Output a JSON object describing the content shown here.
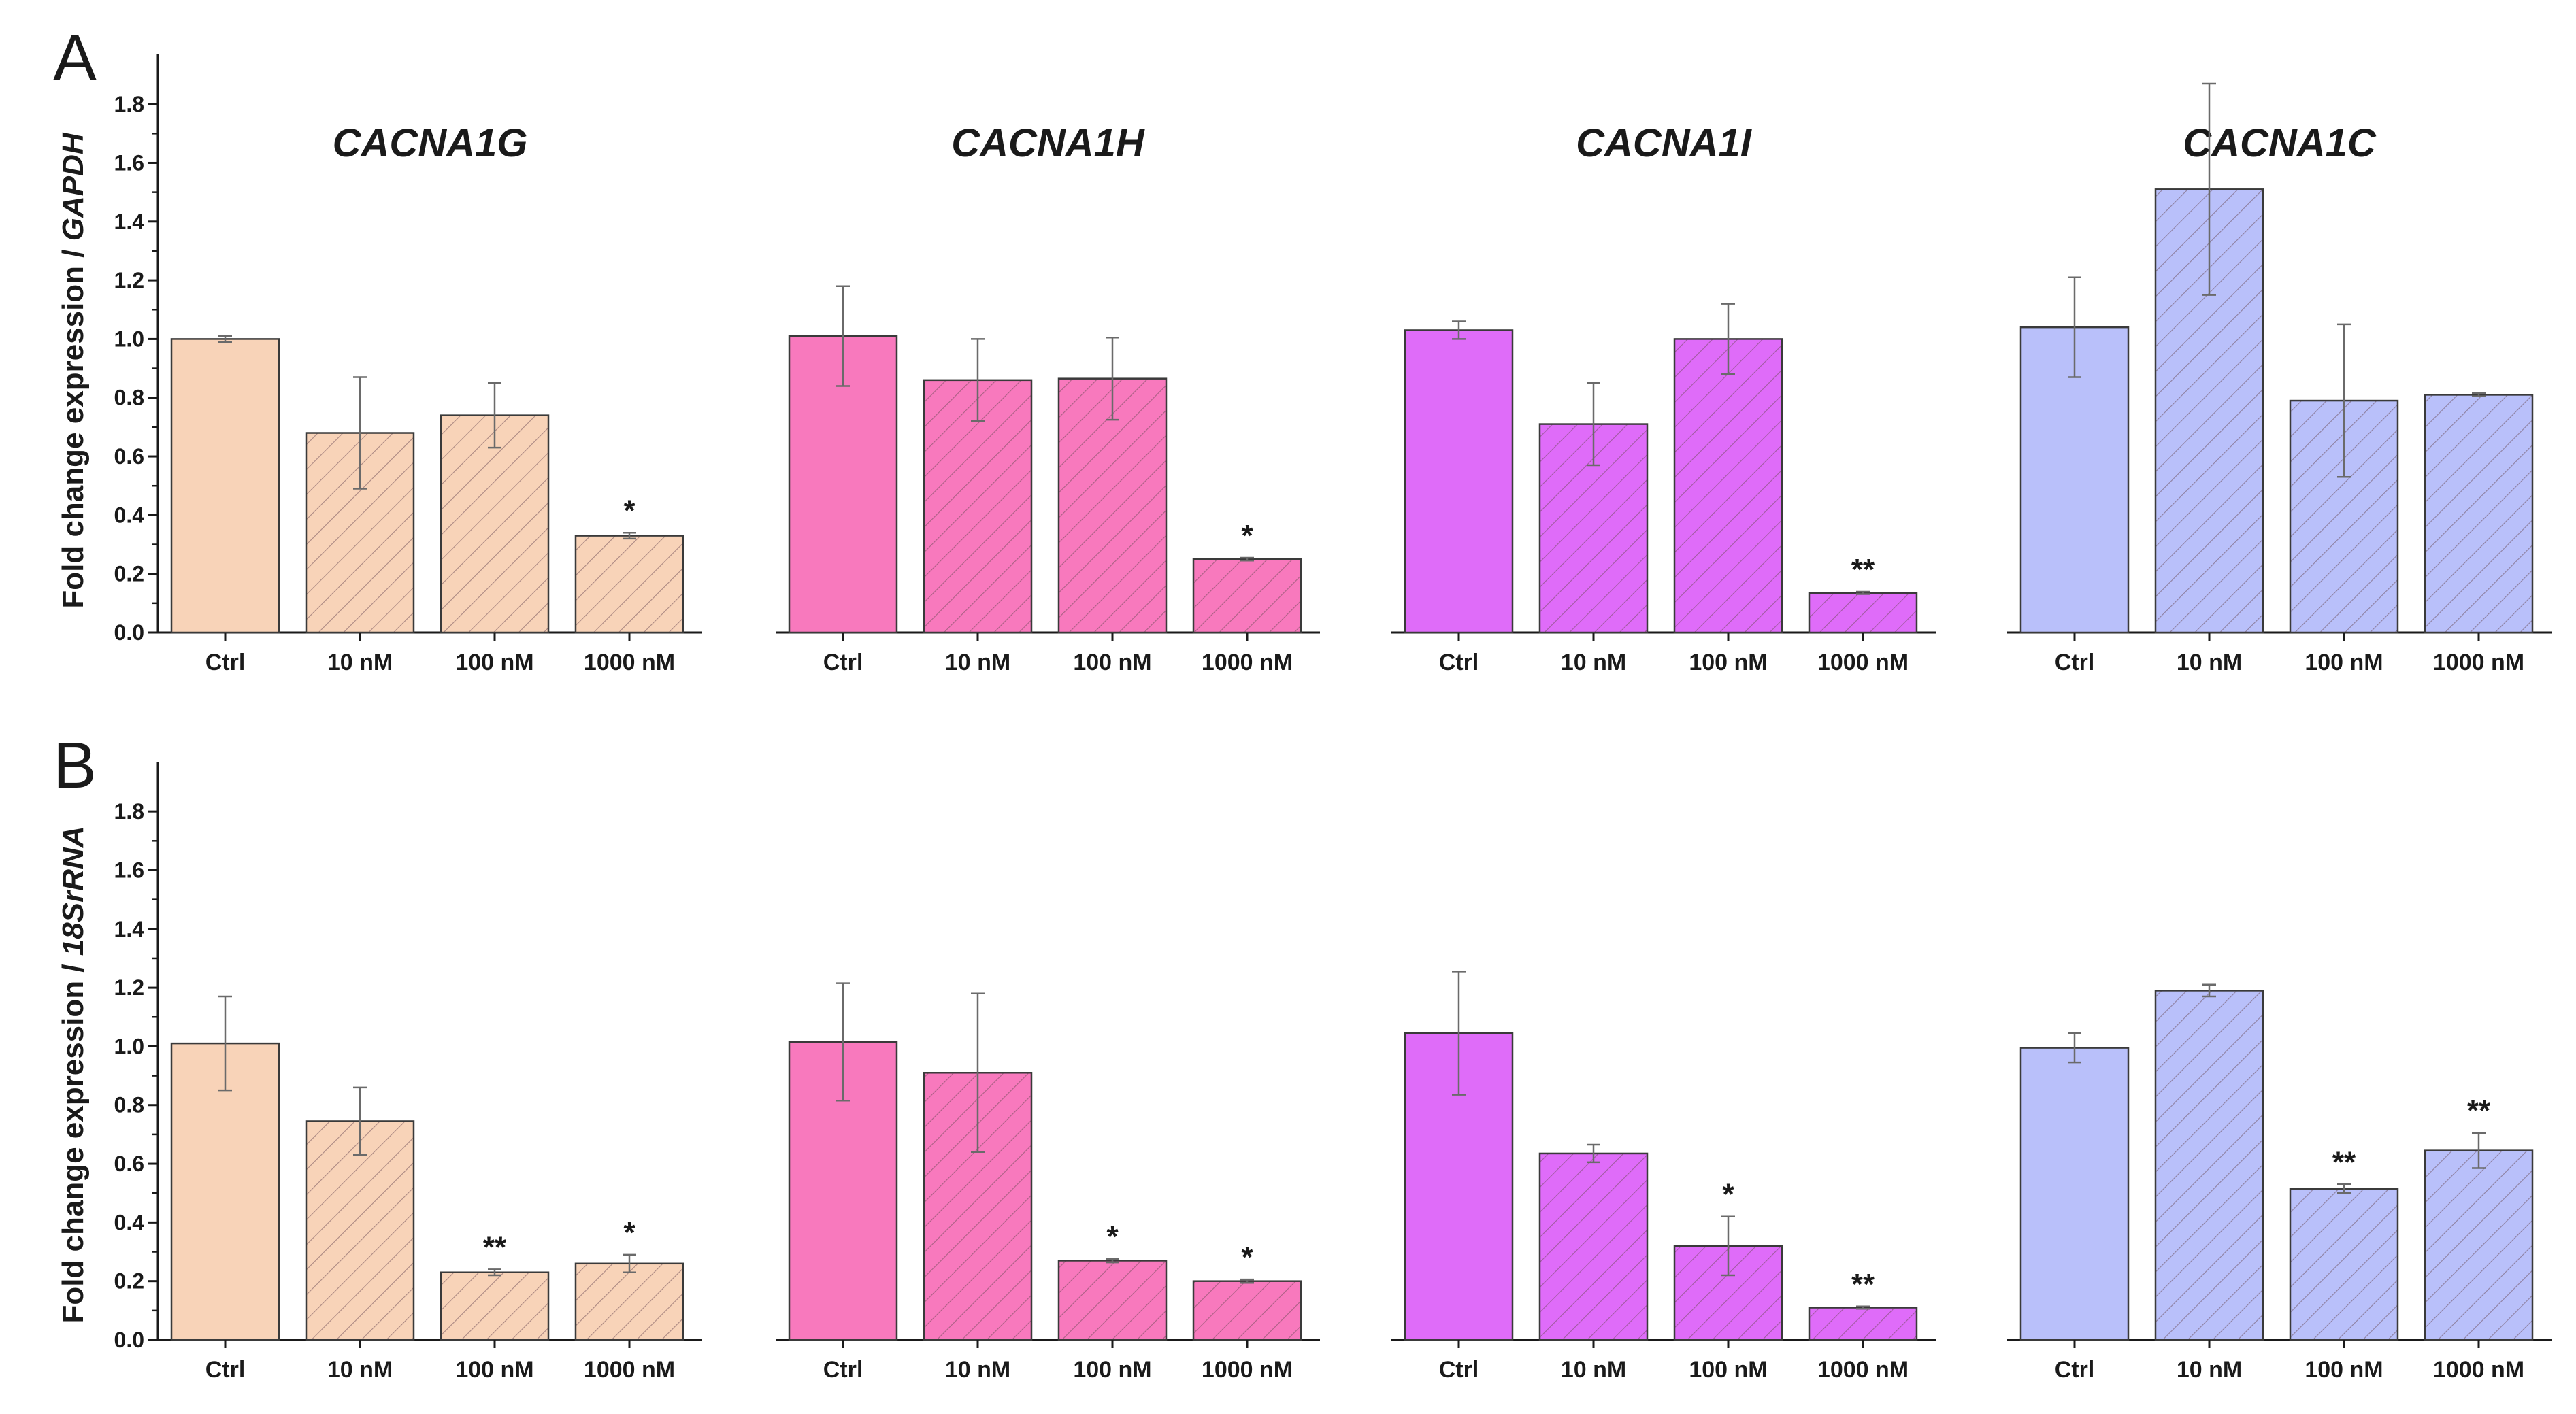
{
  "figure": {
    "panels": [
      {
        "letter": "A",
        "ylabel_prefix": "Fold change expression / ",
        "ylabel_ref": "GAPDH"
      },
      {
        "letter": "B",
        "ylabel_prefix": "Fold change expression / ",
        "ylabel_ref": "18SrRNA"
      }
    ]
  },
  "colors": {
    "CACNA1G": "#f8d3b8",
    "CACNA1H": "#f879bd",
    "CACNA1I": "#df6cf9",
    "CACNA1C": "#b9c0fa",
    "axis": "#1a1a1a",
    "error": "#6a6a6a"
  },
  "chart_data": [
    {
      "type": "bar",
      "panel": "A",
      "title": "CACNA1G",
      "color_key": "CACNA1G",
      "categories": [
        "Ctrl",
        "10 nM",
        "100 nM",
        "1000 nM"
      ],
      "values": [
        1.0,
        0.68,
        0.74,
        0.33
      ],
      "errors": [
        0.01,
        0.19,
        0.11,
        0.01
      ],
      "significance": [
        "",
        "",
        "",
        "*"
      ],
      "hatched": [
        false,
        true,
        true,
        true
      ],
      "ylim": [
        0,
        1.9
      ],
      "yticks": [
        "0.0",
        "0.2",
        "0.4",
        "0.6",
        "0.8",
        "1.0",
        "1.2",
        "1.4",
        "1.6",
        "1.8"
      ],
      "ylabel": "Fold change expression / GAPDH"
    },
    {
      "type": "bar",
      "panel": "A",
      "title": "CACNA1H",
      "color_key": "CACNA1H",
      "categories": [
        "Ctrl",
        "10 nM",
        "100 nM",
        "1000 nM"
      ],
      "values": [
        1.01,
        0.86,
        0.865,
        0.25
      ],
      "errors": [
        0.17,
        0.14,
        0.14,
        0.005
      ],
      "significance": [
        "",
        "",
        "",
        "*"
      ],
      "hatched": [
        false,
        true,
        true,
        true
      ],
      "ylim": [
        0,
        1.9
      ]
    },
    {
      "type": "bar",
      "panel": "A",
      "title": "CACNA1I",
      "color_key": "CACNA1I",
      "categories": [
        "Ctrl",
        "10 nM",
        "100 nM",
        "1000 nM"
      ],
      "values": [
        1.03,
        0.71,
        1.0,
        0.135
      ],
      "errors": [
        0.03,
        0.14,
        0.12,
        0.004
      ],
      "significance": [
        "",
        "",
        "",
        "**"
      ],
      "hatched": [
        false,
        true,
        true,
        true
      ],
      "ylim": [
        0,
        1.9
      ]
    },
    {
      "type": "bar",
      "panel": "A",
      "title": "CACNA1C",
      "color_key": "CACNA1C",
      "categories": [
        "Ctrl",
        "10 nM",
        "100 nM",
        "1000 nM"
      ],
      "values": [
        1.04,
        1.51,
        0.79,
        0.81
      ],
      "errors": [
        0.17,
        0.36,
        0.26,
        0.005
      ],
      "significance": [
        "",
        "",
        "",
        ""
      ],
      "hatched": [
        false,
        true,
        true,
        true
      ],
      "ylim": [
        0,
        1.9
      ]
    },
    {
      "type": "bar",
      "panel": "B",
      "title": "",
      "color_key": "CACNA1G",
      "categories": [
        "Ctrl",
        "10 nM",
        "100 nM",
        "1000 nM"
      ],
      "values": [
        1.01,
        0.745,
        0.23,
        0.26
      ],
      "errors": [
        0.16,
        0.115,
        0.01,
        0.03
      ],
      "significance": [
        "",
        "",
        "**",
        "*"
      ],
      "hatched": [
        false,
        true,
        true,
        true
      ],
      "ylim": [
        0,
        1.9
      ],
      "yticks": [
        "0.0",
        "0.2",
        "0.4",
        "0.6",
        "0.8",
        "1.0",
        "1.2",
        "1.4",
        "1.6",
        "1.8"
      ],
      "ylabel": "Fold change expression / 18SrRNA"
    },
    {
      "type": "bar",
      "panel": "B",
      "title": "",
      "color_key": "CACNA1H",
      "categories": [
        "Ctrl",
        "10 nM",
        "100 nM",
        "1000 nM"
      ],
      "values": [
        1.015,
        0.91,
        0.27,
        0.2
      ],
      "errors": [
        0.2,
        0.27,
        0.006,
        0.006
      ],
      "significance": [
        "",
        "",
        "*",
        "*"
      ],
      "hatched": [
        false,
        true,
        true,
        true
      ],
      "ylim": [
        0,
        1.9
      ]
    },
    {
      "type": "bar",
      "panel": "B",
      "title": "",
      "color_key": "CACNA1I",
      "categories": [
        "Ctrl",
        "10 nM",
        "100 nM",
        "1000 nM"
      ],
      "values": [
        1.045,
        0.635,
        0.32,
        0.11
      ],
      "errors": [
        0.21,
        0.03,
        0.1,
        0.004
      ],
      "significance": [
        "",
        "",
        "*",
        "**"
      ],
      "hatched": [
        false,
        true,
        true,
        true
      ],
      "ylim": [
        0,
        1.9
      ]
    },
    {
      "type": "bar",
      "panel": "B",
      "title": "",
      "color_key": "CACNA1C",
      "categories": [
        "Ctrl",
        "10 nM",
        "100 nM",
        "1000 nM"
      ],
      "values": [
        0.995,
        1.19,
        0.515,
        0.645
      ],
      "errors": [
        0.05,
        0.02,
        0.015,
        0.06
      ],
      "significance": [
        "",
        "",
        "**",
        "**"
      ],
      "hatched": [
        false,
        true,
        true,
        true
      ],
      "ylim": [
        0,
        1.9
      ]
    }
  ]
}
